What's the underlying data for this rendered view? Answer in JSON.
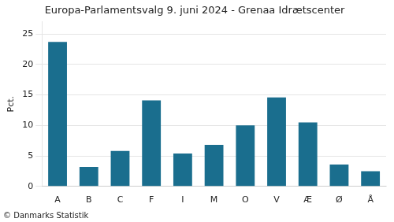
{
  "chart_data": {
    "type": "bar",
    "title": "Europa-Parlamentsvalg 9. juni 2024 - Grenaa Idrætscenter",
    "ylabel": "Pct.",
    "annotations": [
      "© Danmarks Statistik"
    ],
    "categories": [
      "A",
      "B",
      "C",
      "F",
      "I",
      "M",
      "O",
      "V",
      "Æ",
      "Ø",
      "Å"
    ],
    "values": [
      23.7,
      3.2,
      5.8,
      14.1,
      5.4,
      6.8,
      10.0,
      14.6,
      10.5,
      3.6,
      2.5
    ],
    "color": "#1a6e8e",
    "ylim": [
      0,
      27
    ],
    "yticks": [
      0,
      5,
      10,
      15,
      20,
      25
    ],
    "grid": true
  }
}
